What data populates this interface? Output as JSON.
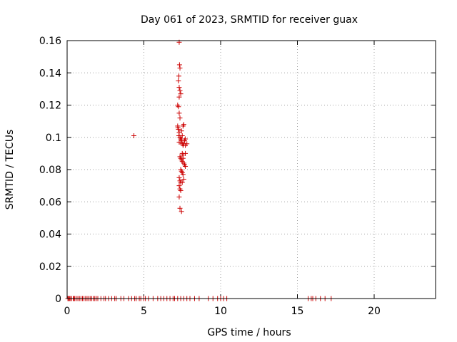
{
  "chart_data": {
    "type": "scatter",
    "title": "Day 061 of 2023, SRMTID for receiver guax",
    "xlabel": "GPS time / hours",
    "ylabel": "SRMTID / TECUs",
    "xlim": [
      0,
      24
    ],
    "ylim": [
      0,
      0.16
    ],
    "xticks": [
      0,
      5,
      10,
      15,
      20
    ],
    "xtick_labels": [
      "0",
      "5",
      "10",
      "15",
      "20"
    ],
    "yticks": [
      0,
      0.02,
      0.04,
      0.06,
      0.08,
      0.1,
      0.12,
      0.14,
      0.16
    ],
    "ytick_labels": [
      "0",
      "0.02",
      "0.04",
      "0.06",
      "0.08",
      "0.1",
      "0.12",
      "0.14",
      "0.16"
    ],
    "grid": true,
    "legend": "none",
    "marker": "+",
    "color": "#cc0000",
    "series": [
      {
        "name": "SRMTID",
        "x": [
          0.05,
          0.1,
          0.15,
          0.2,
          0.3,
          0.4,
          0.45,
          0.5,
          0.6,
          0.7,
          0.8,
          0.9,
          1.0,
          1.1,
          1.2,
          1.3,
          1.4,
          1.5,
          1.6,
          1.7,
          1.8,
          1.9,
          2.0,
          2.2,
          2.4,
          2.5,
          2.7,
          2.9,
          3.1,
          3.2,
          3.5,
          3.7,
          4.0,
          4.2,
          4.4,
          4.5,
          4.7,
          4.8,
          5.0,
          5.1,
          5.3,
          5.6,
          5.9,
          6.1,
          6.3,
          6.5,
          6.7,
          6.9,
          7.0,
          7.2,
          7.4,
          7.6,
          7.8,
          8.0,
          8.3,
          8.6,
          9.2,
          9.5,
          9.8,
          10.0,
          10.2,
          10.4,
          15.7,
          15.9,
          16.0,
          16.2,
          16.5,
          16.8,
          17.2,
          4.35,
          7.3,
          7.32,
          7.35,
          7.28,
          7.25,
          7.3,
          7.35,
          7.4,
          7.3,
          7.2,
          7.25,
          7.3,
          7.35,
          7.2,
          7.22,
          7.25,
          7.3,
          7.28,
          7.35,
          7.4,
          7.45,
          7.3,
          7.5,
          7.55,
          7.6,
          7.65,
          7.7,
          7.5,
          7.45,
          7.55,
          7.6,
          7.7,
          7.8,
          7.4,
          7.45,
          7.5,
          7.55,
          7.35,
          7.4,
          7.45,
          7.5,
          7.6,
          7.65,
          7.7,
          7.4,
          7.45,
          7.5,
          7.55,
          7.3,
          7.35,
          7.4,
          7.3,
          7.35,
          7.4,
          7.3,
          7.35,
          7.45,
          7.5,
          7.6,
          7.55,
          7.7
        ],
        "y": [
          0,
          0,
          0,
          0,
          0,
          0,
          0,
          0,
          0,
          0,
          0,
          0,
          0,
          0,
          0,
          0,
          0,
          0,
          0,
          0,
          0,
          0,
          0,
          0,
          0,
          0,
          0,
          0,
          0,
          0,
          0,
          0,
          0,
          0,
          0,
          0,
          0,
          0,
          0,
          0,
          0,
          0,
          0,
          0,
          0,
          0,
          0,
          0,
          0,
          0,
          0,
          0,
          0,
          0,
          0,
          0,
          0,
          0,
          0,
          0,
          0,
          0,
          0,
          0,
          0,
          0,
          0,
          0,
          0,
          0.101,
          0.159,
          0.145,
          0.143,
          0.138,
          0.135,
          0.131,
          0.129,
          0.127,
          0.125,
          0.12,
          0.119,
          0.115,
          0.112,
          0.107,
          0.106,
          0.105,
          0.103,
          0.101,
          0.1,
          0.099,
          0.098,
          0.097,
          0.096,
          0.095,
          0.096,
          0.098,
          0.099,
          0.101,
          0.104,
          0.107,
          0.108,
          0.095,
          0.096,
          0.097,
          0.099,
          0.09,
          0.089,
          0.088,
          0.087,
          0.086,
          0.085,
          0.084,
          0.083,
          0.082,
          0.08,
          0.079,
          0.078,
          0.077,
          0.075,
          0.073,
          0.072,
          0.07,
          0.068,
          0.067,
          0.063,
          0.056,
          0.054,
          0.072,
          0.074,
          0.087,
          0.09
        ]
      }
    ]
  }
}
